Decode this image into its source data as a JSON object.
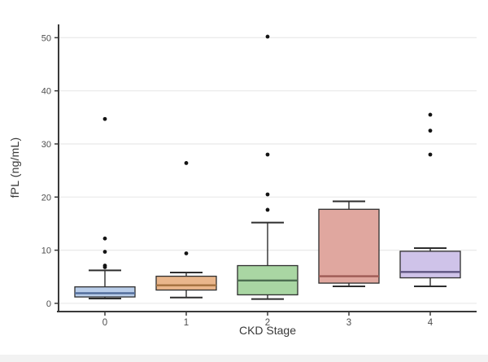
{
  "figure": {
    "xlabel": "CKD Stage",
    "ylabel": "fPL (ng/mL)"
  },
  "chart_data": {
    "type": "boxplot",
    "title": "",
    "xlabel": "CKD Stage",
    "ylabel": "fPL (ng/mL)",
    "categories": [
      "0",
      "1",
      "2",
      "3",
      "4"
    ],
    "yticks": [
      0,
      10,
      20,
      30,
      40,
      50
    ],
    "ylim": [
      -1.55,
      52.5
    ],
    "grid": "horizontal-major",
    "legend": "none",
    "axis_color": "#3a3a3a",
    "gridline_color": "#ebebeb",
    "outlier_color": "#141414",
    "box_stroke_color": "#2e2e2e",
    "series": [
      {
        "category": "0",
        "whisker_low": 0.9,
        "q1": 1.2,
        "median": 1.9,
        "q3": 3.1,
        "whisker_high": 6.2,
        "outliers": [
          6.8,
          7.1,
          9.7,
          12.2,
          34.7
        ],
        "fill": "#b9cde9",
        "median_color": "#4f6a99"
      },
      {
        "category": "1",
        "whisker_low": 1.1,
        "q1": 2.5,
        "median": 3.4,
        "q3": 5.1,
        "whisker_high": 5.8,
        "outliers": [
          9.4,
          26.4
        ],
        "fill": "#e9b68c",
        "median_color": "#a3703f"
      },
      {
        "category": "2",
        "whisker_low": 0.8,
        "q1": 1.6,
        "median": 4.3,
        "q3": 7.1,
        "whisker_high": 15.2,
        "outliers": [
          17.6,
          20.5,
          28.0,
          50.2
        ],
        "fill": "#a9d6a3",
        "median_color": "#4c6e51"
      },
      {
        "category": "3",
        "whisker_low": 3.2,
        "q1": 3.8,
        "median": 5.1,
        "q3": 17.7,
        "whisker_high": 19.2,
        "outliers": [],
        "fill": "#e0a79f",
        "median_color": "#9e5a54"
      },
      {
        "category": "4",
        "whisker_low": 3.2,
        "q1": 4.8,
        "median": 5.9,
        "q3": 9.8,
        "whisker_high": 10.4,
        "outliers": [
          28.0,
          32.5,
          35.5
        ],
        "fill": "#cfc3e9",
        "median_color": "#5e5480"
      }
    ]
  }
}
